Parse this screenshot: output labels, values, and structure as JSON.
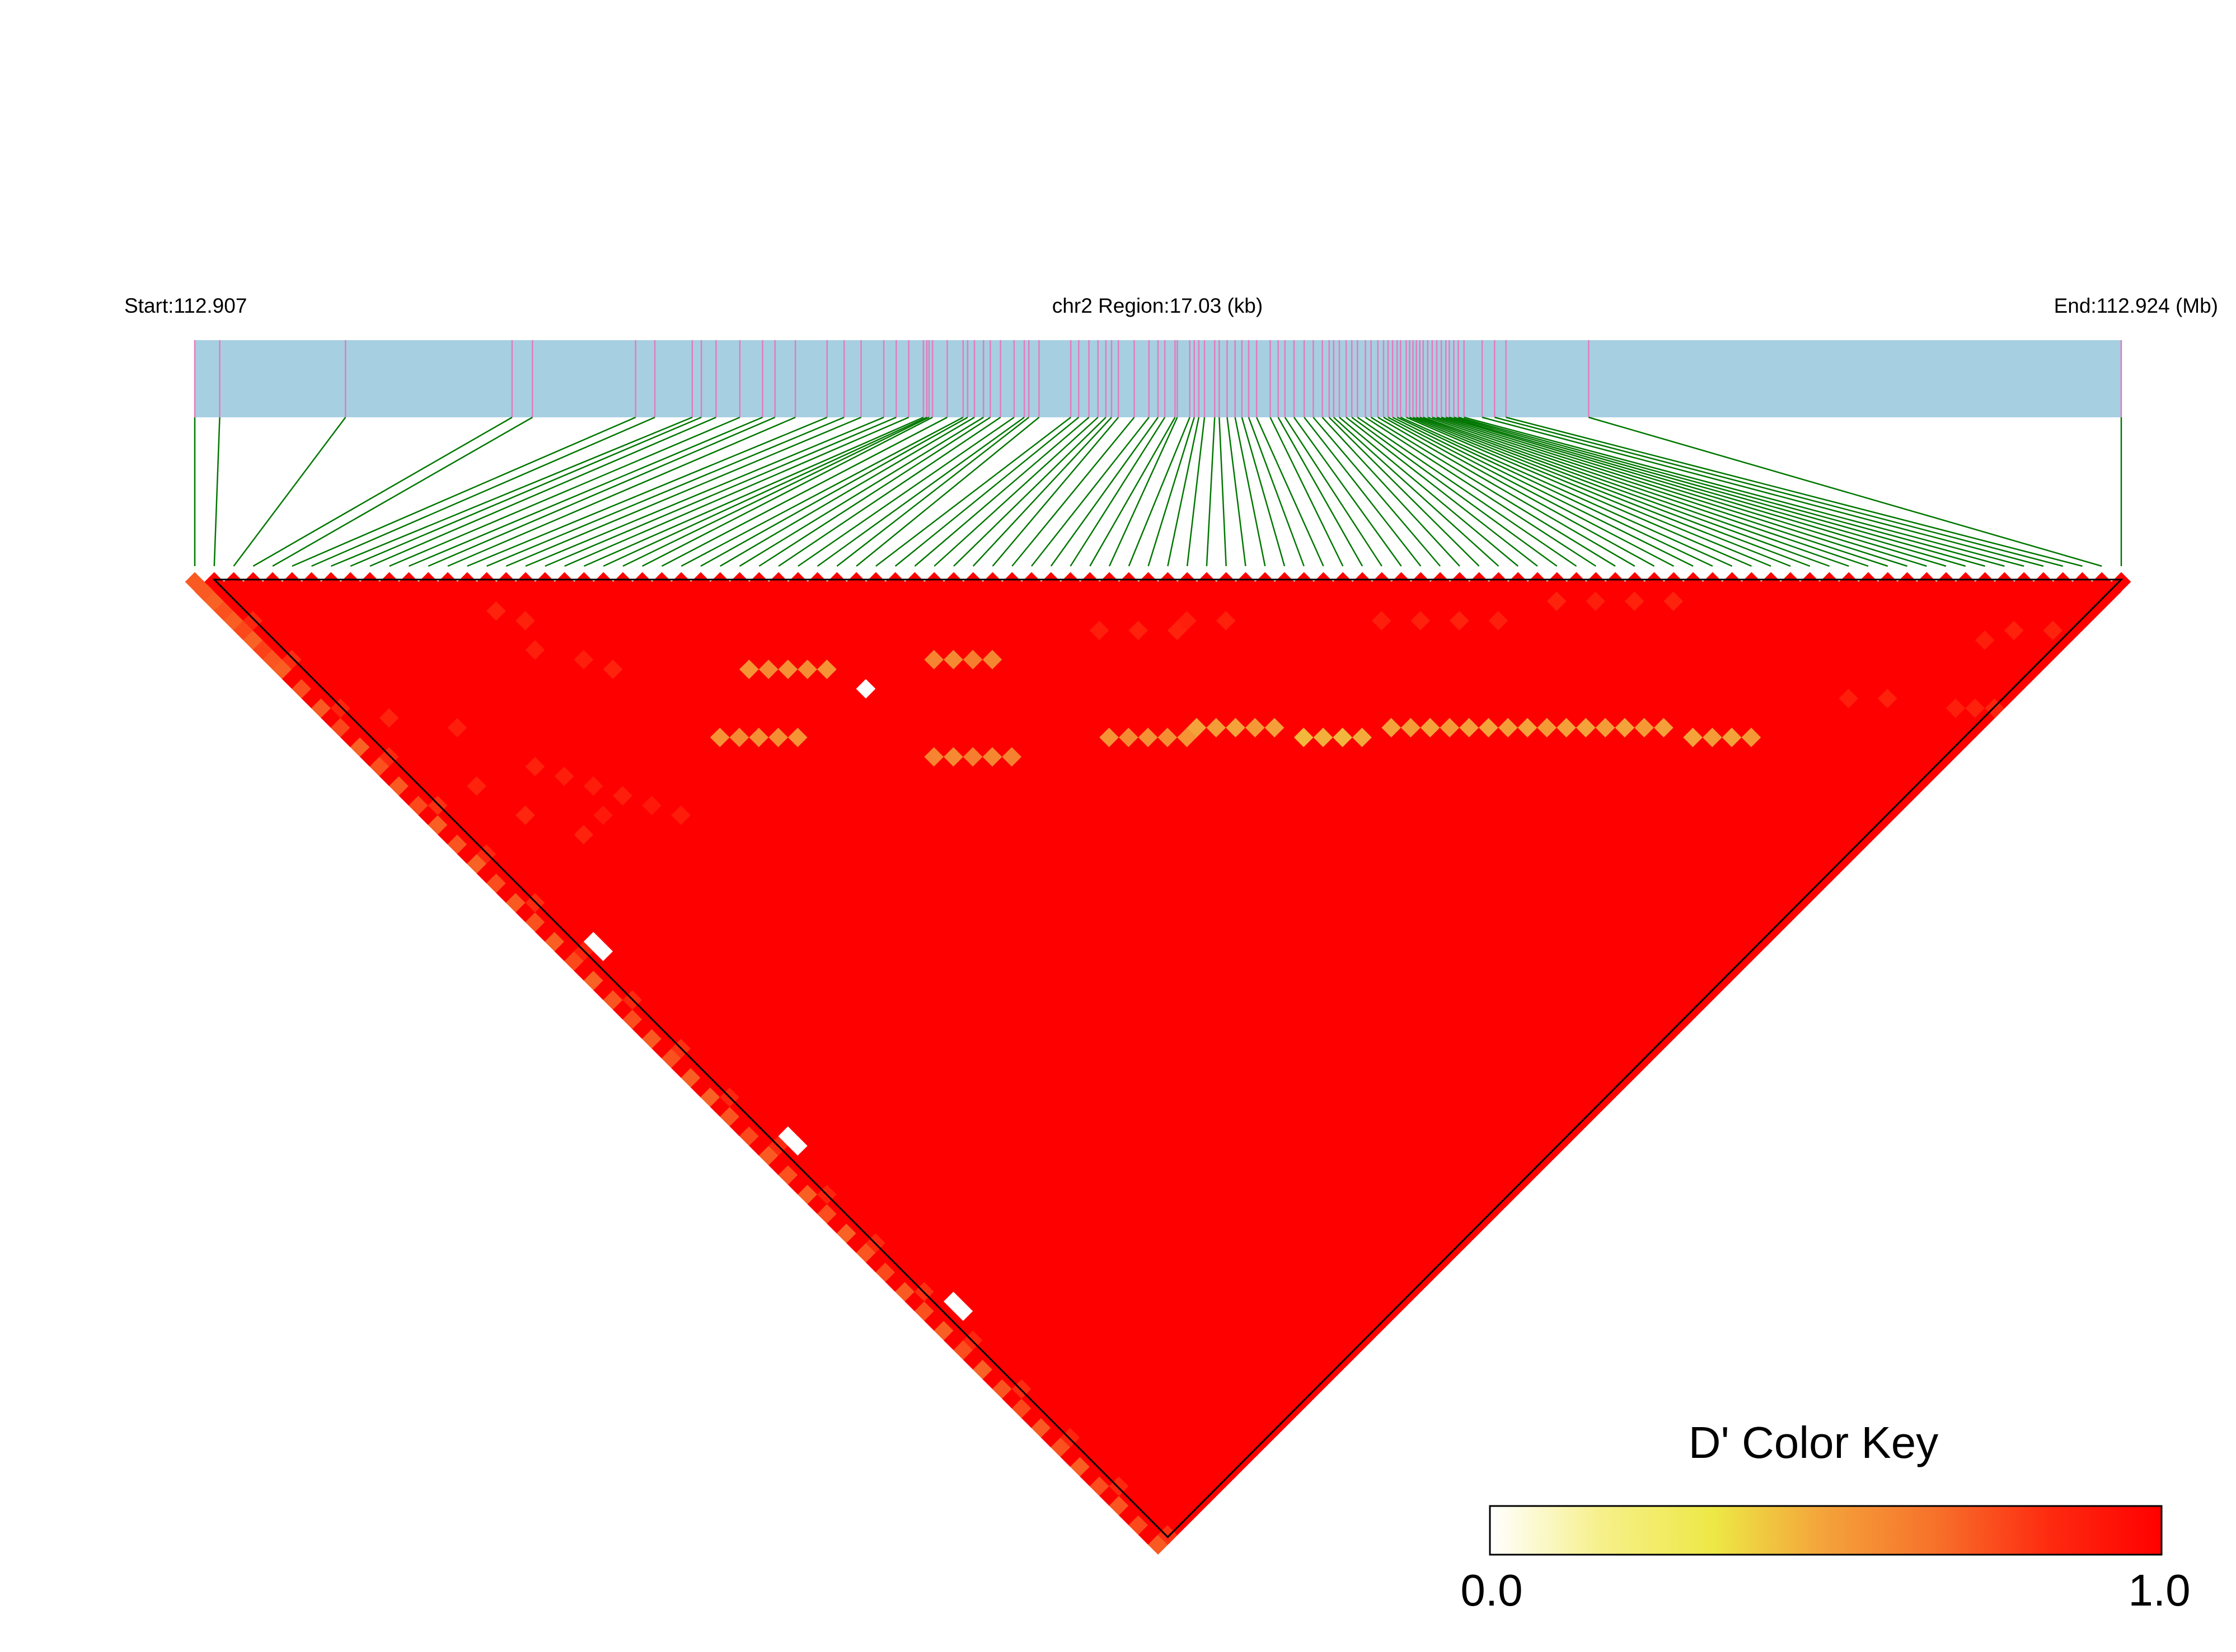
{
  "header": {
    "start_label": "Start:112.907",
    "region_label": "chr2 Region:17.03 (kb)",
    "end_label": "End:112.924 (Mb)"
  },
  "color_key": {
    "title": "D' Color Key",
    "min_label": "0.0",
    "max_label": "1.0",
    "stops": [
      "#ffffff",
      "#f6f08a",
      "#ede845",
      "#f4a23a",
      "#f7702a",
      "#fe2a10",
      "#ff0000"
    ]
  },
  "colors": {
    "track_fill": "#a7cfe2",
    "snp_tick": "#e37bbf",
    "connector": "#007700",
    "ld_high": "#ff0000",
    "ld_mid": "#f7512a",
    "ld_low": "#f7e44e",
    "ld_none": "#ffffff"
  },
  "chart_data": {
    "type": "heatmap",
    "title": "",
    "chromosome": "chr2",
    "region_start_mb": 112.907,
    "region_end_mb": 112.924,
    "region_length_kb": 17.03,
    "num_snps": 100,
    "snp_positions_mb": [
      112.907,
      112.90722,
      112.90833,
      112.9098,
      112.90998,
      112.91089,
      112.91106,
      112.91139,
      112.91147,
      112.9116,
      112.91181,
      112.91201,
      112.91212,
      112.9123,
      112.91258,
      112.91273,
      112.91288,
      112.91308,
      112.91319,
      112.9133,
      112.91343,
      112.91346,
      112.91348,
      112.91351,
      112.91364,
      112.91378,
      112.91382,
      112.91388,
      112.91396,
      112.91402,
      112.91411,
      112.91423,
      112.91432,
      112.91436,
      112.91445,
      112.91473,
      112.9148,
      112.91489,
      112.91497,
      112.91504,
      112.91509,
      112.91515,
      112.91529,
      112.91542,
      112.9155,
      112.91556,
      112.91565,
      112.91567,
      112.91578,
      112.91582,
      112.91586,
      112.91591,
      112.916,
      112.91604,
      112.91611,
      112.91618,
      112.91624,
      112.9163,
      112.91637,
      112.91649,
      112.91656,
      112.91662,
      112.9167,
      112.91679,
      112.91687,
      112.91695,
      112.91701,
      112.91705,
      112.9171,
      112.91716,
      112.91721,
      112.91726,
      112.91733,
      112.91738,
      112.91744,
      112.91749,
      112.91753,
      112.91757,
      112.91761,
      112.91764,
      112.91769,
      112.91772,
      112.91775,
      112.91778,
      112.91781,
      112.91784,
      112.91788,
      112.91792,
      112.91796,
      112.918,
      112.91804,
      112.91807,
      112.91811,
      112.91815,
      112.9182,
      112.91836,
      112.91847,
      112.91857,
      112.9193,
      112.924
    ],
    "block_start_snp": 2,
    "block_end_snp": 100,
    "ld_measure": "D'",
    "value_range": [
      0,
      1
    ],
    "default_value": 1.0,
    "cells": [
      [
        1,
        2,
        0.72
      ],
      [
        1,
        3,
        0.7
      ],
      [
        1,
        4,
        0.74
      ],
      [
        1,
        5,
        0.71
      ],
      [
        1,
        6,
        0.76
      ],
      [
        1,
        7,
        0.7
      ],
      [
        1,
        8,
        0.78
      ],
      [
        1,
        9,
        0.73
      ],
      [
        1,
        10,
        0.71
      ],
      [
        1,
        12,
        0.75
      ],
      [
        1,
        14,
        0.72
      ],
      [
        1,
        16,
        0.77
      ],
      [
        1,
        18,
        0.7
      ],
      [
        1,
        20,
        0.74
      ],
      [
        1,
        22,
        0.72
      ],
      [
        1,
        24,
        0.76
      ],
      [
        1,
        26,
        0.71
      ],
      [
        1,
        28,
        0.73
      ],
      [
        1,
        30,
        0.7
      ],
      [
        1,
        32,
        0.75
      ],
      [
        1,
        34,
        0.72
      ],
      [
        1,
        36,
        0.74
      ],
      [
        1,
        38,
        0.71
      ],
      [
        1,
        40,
        0.76
      ],
      [
        1,
        42,
        0.7
      ],
      [
        1,
        44,
        0.73
      ],
      [
        1,
        46,
        0.75
      ],
      [
        1,
        48,
        0.72
      ],
      [
        1,
        50,
        0.74
      ],
      [
        1,
        52,
        0.71
      ],
      [
        1,
        54,
        0.7
      ],
      [
        1,
        56,
        0.73
      ],
      [
        1,
        58,
        0.76
      ],
      [
        1,
        60,
        0.72
      ],
      [
        1,
        62,
        0.74
      ],
      [
        1,
        64,
        0.71
      ],
      [
        1,
        66,
        0.75
      ],
      [
        1,
        68,
        0.7
      ],
      [
        1,
        70,
        0.73
      ],
      [
        1,
        72,
        0.76
      ],
      [
        1,
        74,
        0.72
      ],
      [
        1,
        76,
        0.74
      ],
      [
        1,
        78,
        0.71
      ],
      [
        1,
        80,
        0.75
      ],
      [
        1,
        82,
        0.7
      ],
      [
        1,
        84,
        0.73
      ],
      [
        1,
        86,
        0.76
      ],
      [
        1,
        88,
        0.72
      ],
      [
        1,
        90,
        0.74
      ],
      [
        1,
        92,
        0.71
      ],
      [
        1,
        94,
        0.75
      ],
      [
        1,
        96,
        0.73
      ],
      [
        1,
        98,
        0.76
      ],
      [
        1,
        100,
        0.72
      ],
      [
        2,
        6,
        0.85
      ],
      [
        2,
        10,
        0.83
      ],
      [
        2,
        15,
        0.86
      ],
      [
        2,
        20,
        0.84
      ],
      [
        2,
        25,
        0.82
      ],
      [
        2,
        30,
        0.85
      ],
      [
        2,
        35,
        0.83
      ],
      [
        2,
        40,
        0.86
      ],
      [
        2,
        45,
        0.84
      ],
      [
        2,
        50,
        0.82
      ],
      [
        2,
        55,
        0.85
      ],
      [
        2,
        60,
        0.83
      ],
      [
        2,
        65,
        0.86
      ],
      [
        2,
        70,
        0.84
      ],
      [
        2,
        75,
        0.82
      ],
      [
        2,
        80,
        0.85
      ],
      [
        2,
        85,
        0.83
      ],
      [
        2,
        90,
        0.86
      ],
      [
        2,
        95,
        0.84
      ],
      [
        2,
        100,
        0.82
      ],
      [
        3,
        40,
        0.0
      ],
      [
        3,
        41,
        0.0
      ],
      [
        3,
        60,
        0.0
      ],
      [
        3,
        61,
        0.0
      ],
      [
        3,
        77,
        0.0
      ],
      [
        3,
        78,
        0.0
      ],
      [
        4,
        18,
        0.86
      ],
      [
        5,
        26,
        0.86
      ],
      [
        6,
        30,
        0.85
      ],
      [
        7,
        22,
        0.88
      ],
      [
        8,
        34,
        0.86
      ],
      [
        9,
        28,
        0.87
      ],
      [
        10,
        30,
        0.88
      ],
      [
        10,
        34,
        0.9
      ],
      [
        11,
        32,
        0.89
      ],
      [
        12,
        34,
        0.88
      ],
      [
        13,
        36,
        0.9
      ],
      [
        14,
        38,
        0.89
      ],
      [
        15,
        18,
        0.86
      ],
      [
        15,
        22,
        0.88
      ],
      [
        16,
        20,
        0.87
      ],
      [
        17,
        25,
        0.88
      ],
      [
        18,
        27,
        0.86
      ],
      [
        20,
        36,
        0.55
      ],
      [
        21,
        37,
        0.58
      ],
      [
        22,
        38,
        0.56
      ],
      [
        23,
        39,
        0.57
      ],
      [
        24,
        40,
        0.55
      ],
      [
        25,
        34,
        0.55
      ],
      [
        26,
        35,
        0.58
      ],
      [
        27,
        36,
        0.56
      ],
      [
        28,
        37,
        0.57
      ],
      [
        29,
        38,
        0.55
      ],
      [
        30,
        41,
        0.0
      ],
      [
        30,
        48,
        0.6
      ],
      [
        31,
        49,
        0.58
      ],
      [
        32,
        50,
        0.62
      ],
      [
        33,
        51,
        0.59
      ],
      [
        34,
        52,
        0.61
      ],
      [
        35,
        43,
        0.6
      ],
      [
        36,
        44,
        0.58
      ],
      [
        37,
        45,
        0.62
      ],
      [
        38,
        46,
        0.59
      ],
      [
        40,
        56,
        0.55
      ],
      [
        41,
        57,
        0.58
      ],
      [
        42,
        58,
        0.56
      ],
      [
        43,
        59,
        0.57
      ],
      [
        44,
        60,
        0.55
      ],
      [
        45,
        60,
        0.5
      ],
      [
        46,
        61,
        0.52
      ],
      [
        47,
        62,
        0.5
      ],
      [
        48,
        63,
        0.53
      ],
      [
        49,
        64,
        0.51
      ],
      [
        50,
        66,
        0.45
      ],
      [
        51,
        67,
        0.47
      ],
      [
        52,
        68,
        0.45
      ],
      [
        53,
        69,
        0.48
      ],
      [
        55,
        70,
        0.5
      ],
      [
        56,
        71,
        0.52
      ],
      [
        57,
        72,
        0.5
      ],
      [
        58,
        73,
        0.53
      ],
      [
        59,
        74,
        0.51
      ],
      [
        60,
        75,
        0.5
      ],
      [
        61,
        76,
        0.52
      ],
      [
        62,
        77,
        0.5
      ],
      [
        63,
        78,
        0.53
      ],
      [
        64,
        79,
        0.51
      ],
      [
        65,
        80,
        0.5
      ],
      [
        66,
        81,
        0.52
      ],
      [
        67,
        82,
        0.5
      ],
      [
        68,
        83,
        0.53
      ],
      [
        69,
        84,
        0.51
      ],
      [
        70,
        86,
        0.5
      ],
      [
        71,
        87,
        0.52
      ],
      [
        72,
        88,
        0.5
      ],
      [
        73,
        89,
        0.53
      ],
      [
        45,
        50,
        0.88
      ],
      [
        47,
        52,
        0.87
      ],
      [
        49,
        54,
        0.86
      ],
      [
        50,
        54,
        0.88
      ],
      [
        52,
        56,
        0.87
      ],
      [
        60,
        64,
        0.88
      ],
      [
        62,
        66,
        0.87
      ],
      [
        64,
        68,
        0.86
      ],
      [
        66,
        70,
        0.88
      ],
      [
        70,
        72,
        0.86
      ],
      [
        72,
        74,
        0.88
      ],
      [
        74,
        76,
        0.87
      ],
      [
        76,
        78,
        0.86
      ],
      [
        85,
        98,
        0.88
      ],
      [
        86,
        99,
        0.87
      ],
      [
        87,
        100,
        0.86
      ],
      [
        80,
        92,
        0.88
      ],
      [
        82,
        94,
        0.87
      ],
      [
        90,
        96,
        0.88
      ],
      [
        92,
        97,
        0.87
      ],
      [
        94,
        99,
        0.86
      ]
    ]
  }
}
